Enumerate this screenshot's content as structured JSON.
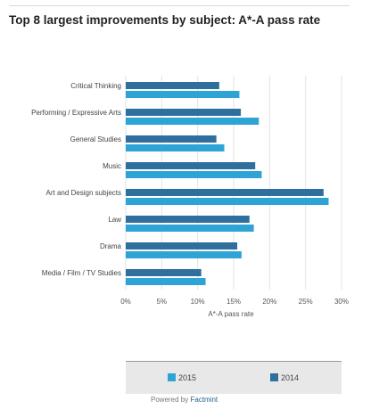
{
  "title": "Top 8 largest improvements by subject: A*-A pass rate",
  "footer": {
    "prefix": "Powered by",
    "brand": "Factmint"
  },
  "chart_data": {
    "type": "bar",
    "orientation": "horizontal",
    "title": "Top 8 largest improvements by subject: A*-A pass rate",
    "xlabel": "A*-A pass rate",
    "ylabel": "",
    "xlim": [
      0,
      30
    ],
    "xticks": [
      "0%",
      "5%",
      "10%",
      "15%",
      "20%",
      "25%",
      "30%"
    ],
    "grid": true,
    "legend_position": "bottom",
    "categories": [
      "Critical Thinking",
      "Performing / Expressive Arts",
      "General Studies",
      "Music",
      "Art and Design subjects",
      "Law",
      "Drama",
      "Media / Film / TV Studies"
    ],
    "series": [
      {
        "name": "2014",
        "color": "#2e6f9e",
        "values": [
          13,
          16,
          12.6,
          18,
          27.5,
          17.2,
          15.5,
          10.5
        ]
      },
      {
        "name": "2015",
        "color": "#2ea3d6",
        "values": [
          15.8,
          18.5,
          13.7,
          18.9,
          28.2,
          17.8,
          16.1,
          11.1
        ]
      }
    ]
  }
}
